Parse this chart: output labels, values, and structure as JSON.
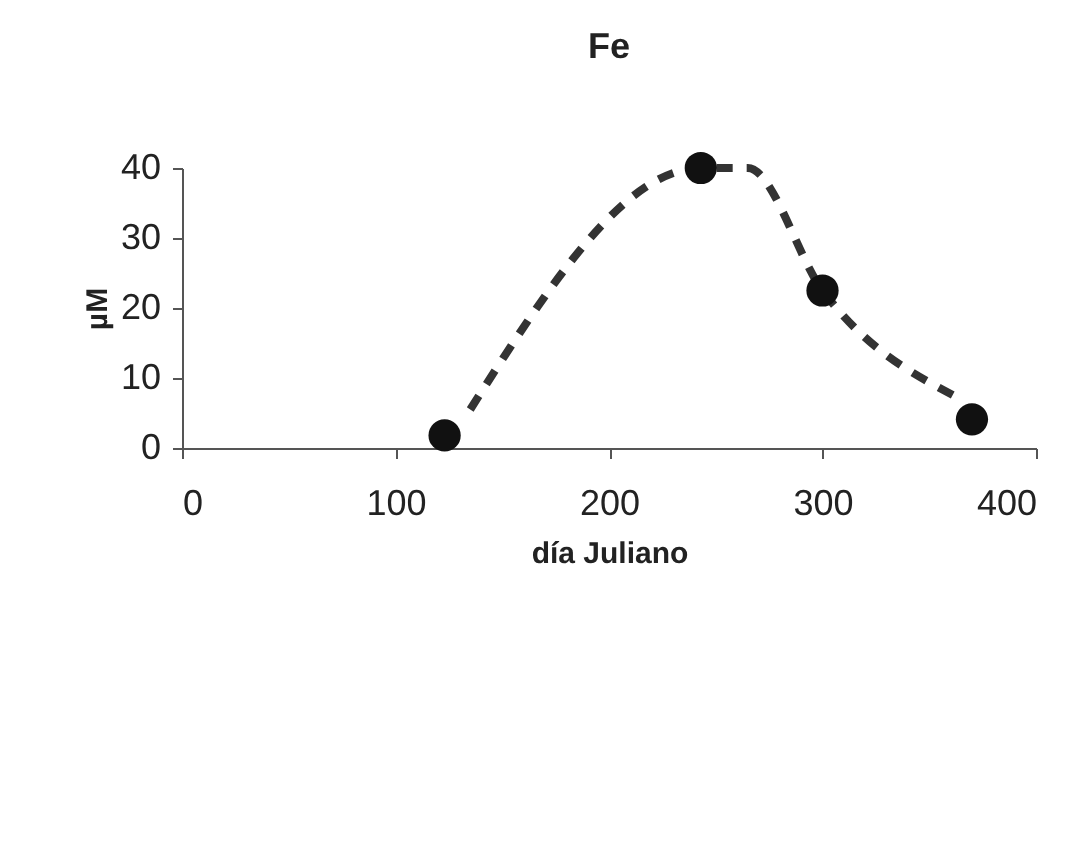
{
  "chart_data": {
    "type": "scatter",
    "title": "Fe",
    "xlabel": "día Juliano",
    "ylabel": "µM",
    "xlim": [
      0,
      400
    ],
    "xticks": [
      0,
      100,
      200,
      300,
      400
    ],
    "ylim": [
      0,
      40
    ],
    "yticks": [
      0,
      10,
      20,
      30,
      40
    ],
    "grid": false,
    "legend": false,
    "series": [
      {
        "type": "line",
        "color": "#333333",
        "line_style": "dashed",
        "marker": "none",
        "x": [
          135,
          243,
          265,
          300,
          362
        ],
        "values": [
          5.5,
          40,
          40,
          22.5,
          7.4
        ]
      },
      {
        "color": "#111111",
        "marker": "circle",
        "x": [
          123,
          243,
          300,
          370
        ],
        "values": [
          1.8,
          40,
          22.5,
          4.1
        ]
      }
    ]
  }
}
